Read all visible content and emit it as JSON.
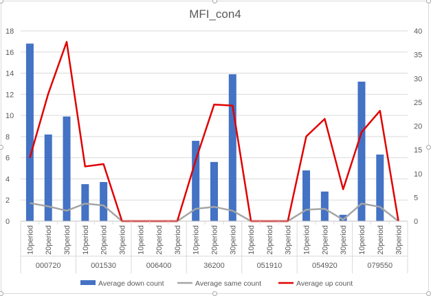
{
  "chart_data": {
    "type": "bar",
    "title": "MFI_con4",
    "groups": [
      "000720",
      "001530",
      "006400",
      "36200",
      "051910",
      "054920",
      "079550"
    ],
    "subcategories": [
      "10period",
      "20period",
      "30period"
    ],
    "y_left": {
      "ylim": [
        0,
        18
      ],
      "ticks": [
        "0",
        "2",
        "4",
        "6",
        "8",
        "10",
        "12",
        "14",
        "16",
        "18"
      ]
    },
    "y_right": {
      "ylim": [
        0,
        40
      ],
      "ticks": [
        "0",
        "5",
        "10",
        "15",
        "20",
        "25",
        "30",
        "35",
        "40"
      ]
    },
    "grid": true,
    "legend_position": "bottom",
    "series": [
      {
        "name": "Average down count",
        "kind": "bar",
        "axis": "left",
        "color": "#4472C4",
        "values": [
          16.8,
          8.2,
          9.9,
          3.5,
          3.7,
          0,
          0,
          0,
          0,
          7.6,
          5.6,
          13.9,
          0,
          0,
          0,
          4.8,
          2.8,
          0.6,
          13.2,
          6.3,
          0
        ]
      },
      {
        "name": "Average same count",
        "kind": "line",
        "axis": "right",
        "color": "#A5A5A5",
        "values": [
          3.8,
          3.1,
          2.2,
          3.7,
          3.3,
          0,
          0,
          0,
          0,
          2.6,
          3.0,
          2.2,
          0,
          0,
          0,
          2.4,
          2.6,
          0.3,
          3.7,
          3.0,
          0
        ]
      },
      {
        "name": "Average up count",
        "kind": "line",
        "axis": "right",
        "color": "#E00000",
        "values": [
          13.3,
          26.8,
          37.7,
          11.5,
          12.0,
          0,
          0,
          0,
          0,
          12.8,
          24.5,
          24.3,
          0,
          0,
          0,
          17.8,
          21.5,
          6.7,
          18.7,
          23.2,
          0
        ]
      }
    ]
  }
}
